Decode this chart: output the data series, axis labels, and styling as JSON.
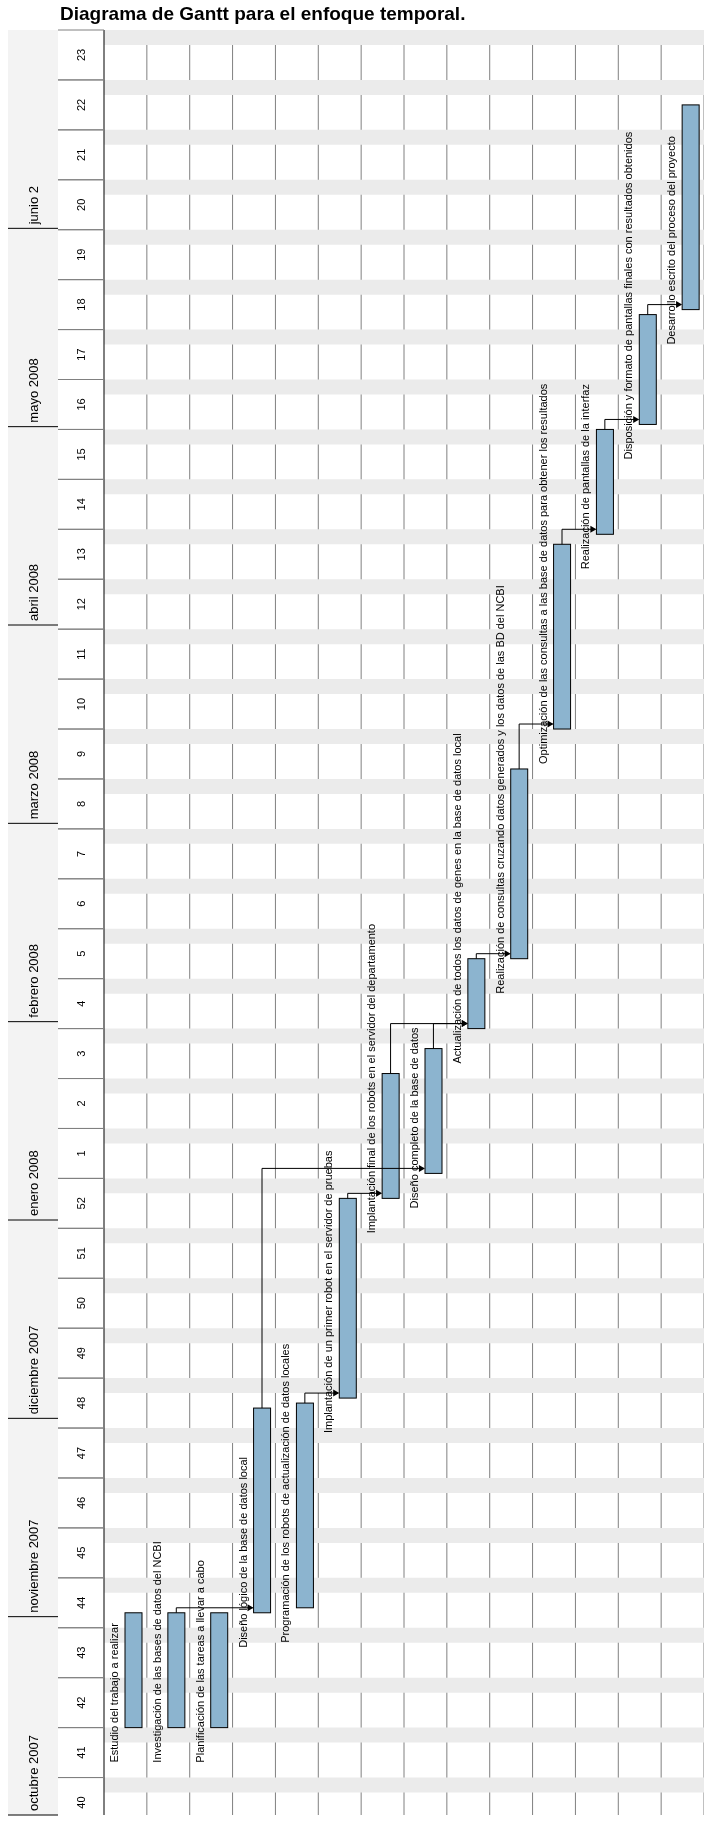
{
  "chart_data": {
    "type": "bar",
    "title": "Diagrama de Gantt para el enfoque temporal.",
    "categories": [
      "Estudio del trabajo a realizar",
      "Investigación de las bases de datos del NCBI",
      "Planificación de las tareas a llevar a cabo",
      "Diseño lógico de la base de datos local",
      "Programación de los robots de actualización de datos locales",
      "Implantación de un primer robot en el servidor de pruebas",
      "Implantación final de los robots en el servidor del departamento",
      "Diseño completo de la base de datos",
      "Actualización de todos los datos de genes en la base de datos local",
      "Realización de consultas cruzando datos generados y los datos de las BD del NCBI",
      "Optimización de las consultas a las base de datos para obtener los resultados",
      "Realización de pantallas de la interfaz",
      "Disposición y formato de pantallas finales con resultados obtenidos",
      "Desarrollo escrito del proceso del proyecto"
    ],
    "base": [
      41.5,
      41.5,
      41.5,
      43.8,
      43.9,
      48.1,
      52.1,
      52.6,
      55.5,
      56.9,
      61.5,
      65.4,
      67.6,
      69.9
    ],
    "values": [
      2.3,
      2.3,
      2.3,
      4.1,
      4.1,
      4,
      2.5,
      2.5,
      1.4,
      3.8,
      3.7,
      2.1,
      2.2,
      4.1
    ],
    "color": "#8cb4cf",
    "ylim": [
      39.75,
      75.5
    ],
    "yticks": [
      40,
      41,
      42,
      43,
      44,
      45,
      46,
      47,
      48,
      49,
      50,
      51,
      52
    ],
    "y2lim": [
      -12.25,
      23.5
    ],
    "y2ticks": [
      1,
      2,
      3,
      4,
      5,
      6,
      7,
      8,
      9,
      10,
      11,
      12,
      13,
      14,
      15,
      16,
      17,
      18,
      19,
      20,
      21,
      22,
      23
    ],
    "grid": "x",
    "annotations": [
      "octubre 2007",
      "noviembre 2007",
      "diciembre 2007",
      "enero 2008",
      "febrero 2008",
      "marzo 2008",
      "abril 2008",
      "mayo 2008",
      "junio 2"
    ],
    "bands": [
      {
        "axis": "y",
        "from": 40.2,
        "to": 40.5,
        "color": "#ebebeb"
      },
      {
        "axis": "y",
        "from": 41.2,
        "to": 41.5,
        "color": "#ebebeb"
      },
      {
        "axis": "y",
        "from": 42.2,
        "to": 42.5,
        "color": "#ebebeb"
      },
      {
        "axis": "y",
        "from": 43.2,
        "to": 43.5,
        "color": "#ebebeb"
      },
      {
        "axis": "y",
        "from": 44.2,
        "to": 44.5,
        "color": "#ebebeb"
      },
      {
        "axis": "y",
        "from": 45.2,
        "to": 45.5,
        "color": "#ebebeb"
      },
      {
        "axis": "y",
        "from": 46.2,
        "to": 46.5,
        "color": "#ebebeb"
      },
      {
        "axis": "y",
        "from": 47.2,
        "to": 47.5,
        "color": "#ebebeb"
      },
      {
        "axis": "y",
        "from": 48.2,
        "to": 48.5,
        "color": "#ebebeb"
      },
      {
        "axis": "y",
        "from": 49.2,
        "to": 49.5,
        "color": "#ebebeb"
      },
      {
        "axis": "y",
        "from": 50.2,
        "to": 50.5,
        "color": "#ebebeb"
      },
      {
        "axis": "y",
        "from": 51.2,
        "to": 51.5,
        "color": "#ebebeb"
      },
      {
        "axis": "y",
        "from": 52.2,
        "to": 52.5,
        "color": "#ebebeb"
      },
      {
        "axis": "y",
        "from": 53.2,
        "to": 53.5,
        "color": "#ebebeb"
      },
      {
        "axis": "y",
        "from": 54.2,
        "to": 54.5,
        "color": "#ebebeb"
      },
      {
        "axis": "y",
        "from": 55.2,
        "to": 55.5,
        "color": "#ebebeb"
      },
      {
        "axis": "y",
        "from": 56.2,
        "to": 56.5,
        "color": "#ebebeb"
      },
      {
        "axis": "y",
        "from": 57.2,
        "to": 57.5,
        "color": "#ebebeb"
      },
      {
        "axis": "y",
        "from": 58.2,
        "to": 58.5,
        "color": "#ebebeb"
      },
      {
        "axis": "y",
        "from": 59.2,
        "to": 59.5,
        "color": "#ebebeb"
      },
      {
        "axis": "y",
        "from": 60.2,
        "to": 60.5,
        "color": "#ebebeb"
      },
      {
        "axis": "y",
        "from": 61.2,
        "to": 61.5,
        "color": "#ebebeb"
      },
      {
        "axis": "y",
        "from": 62.2,
        "to": 62.5,
        "color": "#ebebeb"
      },
      {
        "axis": "y",
        "from": 63.2,
        "to": 63.5,
        "color": "#ebebeb"
      },
      {
        "axis": "y",
        "from": 64.2,
        "to": 64.5,
        "color": "#ebebeb"
      },
      {
        "axis": "y",
        "from": 65.2,
        "to": 65.5,
        "color": "#ebebeb"
      },
      {
        "axis": "y",
        "from": 66.2,
        "to": 66.5,
        "color": "#ebebeb"
      },
      {
        "axis": "y",
        "from": 67.2,
        "to": 67.5,
        "color": "#ebebeb"
      },
      {
        "axis": "y",
        "from": 68.2,
        "to": 68.5,
        "color": "#ebebeb"
      },
      {
        "axis": "y",
        "from": 69.2,
        "to": 69.5,
        "color": "#ebebeb"
      },
      {
        "axis": "y",
        "from": 70.2,
        "to": 70.5,
        "color": "#ebebeb"
      },
      {
        "axis": "y",
        "from": 71.2,
        "to": 71.5,
        "color": "#ebebeb"
      },
      {
        "axis": "y",
        "from": 72.2,
        "to": 72.5,
        "color": "#ebebeb"
      },
      {
        "axis": "y",
        "from": 73.2,
        "to": 73.5,
        "color": "#ebebeb"
      },
      {
        "axis": "y",
        "from": 74.2,
        "to": 74.5,
        "color": "#ebebeb"
      },
      {
        "axis": "y",
        "from": 75.2,
        "to": 75.5,
        "color": "#ebebeb"
      }
    ]
  }
}
